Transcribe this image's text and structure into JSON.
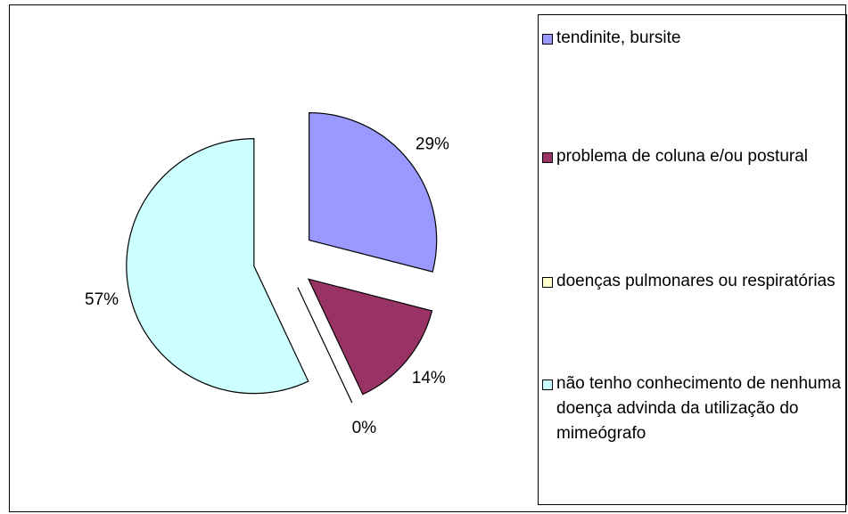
{
  "chart_data": {
    "type": "pie",
    "categories": [
      "tendinite, bursite",
      "problema de coluna e/ou postural",
      "doenças pulmonares ou respiratórias",
      "não tenho conhecimento de nenhuma doença advinda da utilização do mimeógrafo"
    ],
    "values": [
      29,
      14,
      0,
      57
    ],
    "value_labels": [
      "29%",
      "14%",
      "0%",
      "57%"
    ],
    "colors": [
      "#9999ff",
      "#993366",
      "#ffffcc",
      "#ccffff"
    ],
    "legend": "right"
  }
}
